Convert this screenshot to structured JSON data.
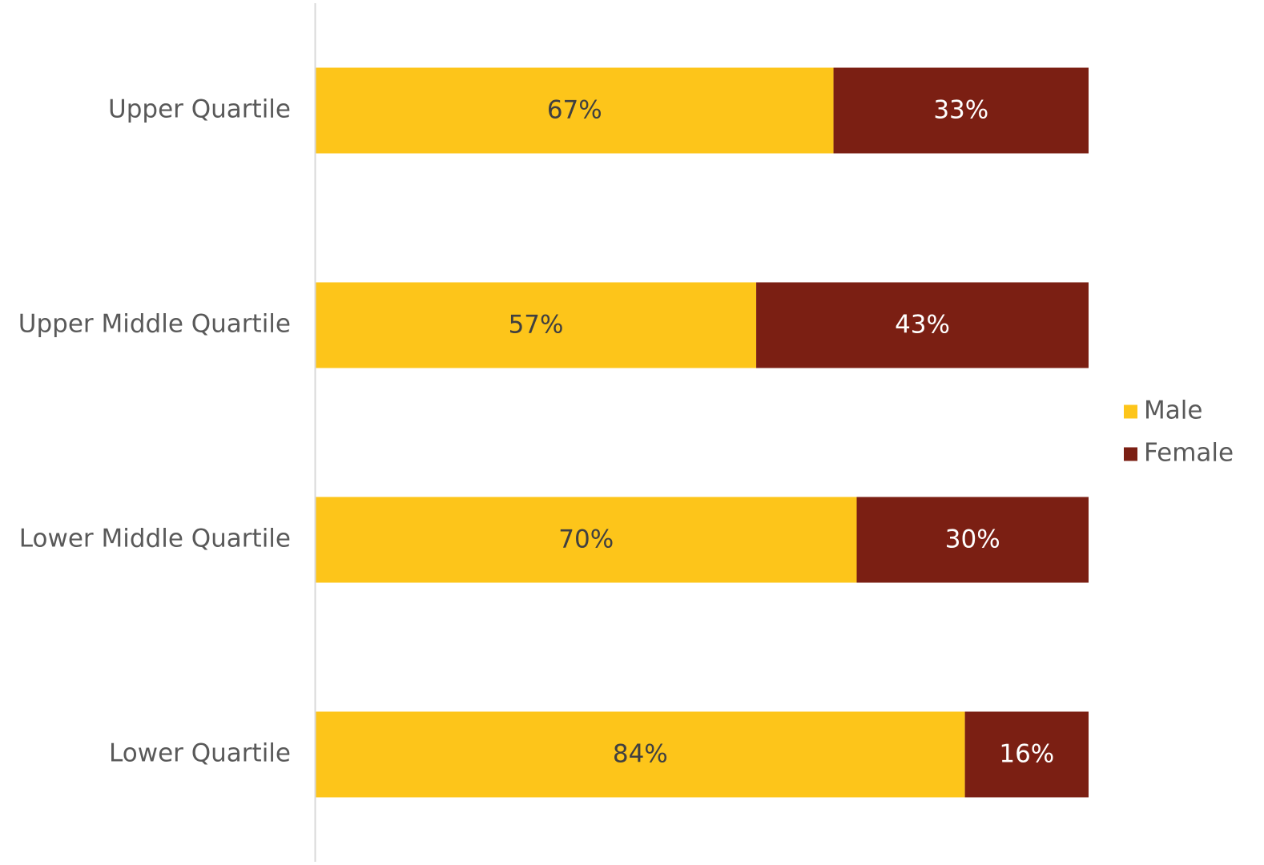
{
  "chart_data": {
    "type": "bar",
    "orientation": "horizontal",
    "stacked": true,
    "percent_stacked": true,
    "categories": [
      "Upper Quartile",
      "Upper Middle Quartile",
      "Lower Middle Quartile",
      "Lower Quartile"
    ],
    "series": [
      {
        "name": "Male",
        "color": "#FDC51A",
        "values": [
          67,
          57,
          70,
          84
        ],
        "labels": [
          "67%",
          "57%",
          "70%",
          "84%"
        ]
      },
      {
        "name": "Female",
        "color": "#7B1F13",
        "values": [
          33,
          43,
          30,
          16
        ],
        "labels": [
          "33%",
          "43%",
          "30%",
          "16%"
        ]
      }
    ],
    "xlim": [
      0,
      100
    ],
    "grid": false,
    "legend_position": "right",
    "axis_line_color": "#D9D9D9"
  }
}
